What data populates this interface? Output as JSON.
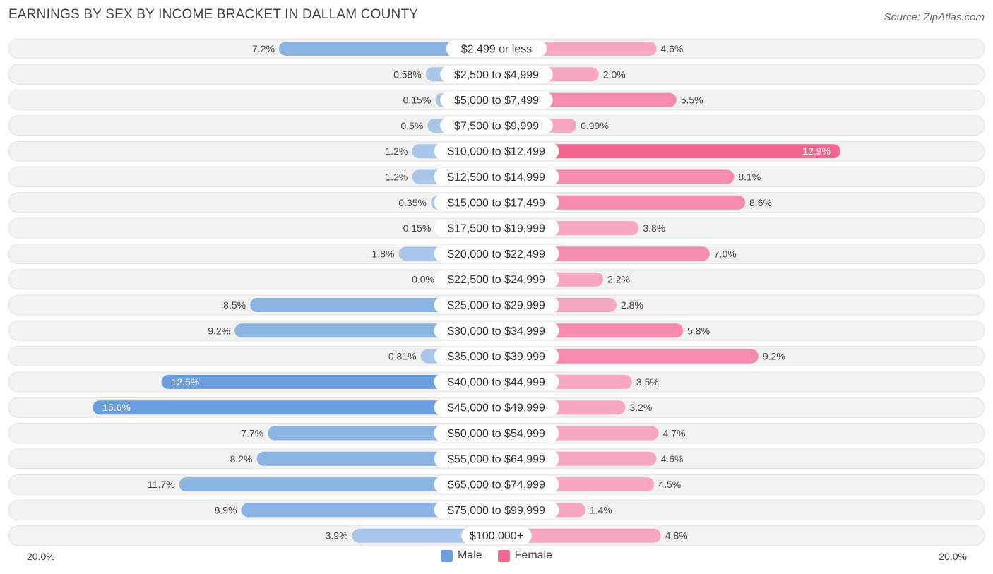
{
  "title": "EARNINGS BY SEX BY INCOME BRACKET IN DALLAM COUNTY",
  "source": "Source: ZipAtlas.com",
  "axis": {
    "left_label": "20.0%",
    "right_label": "20.0%"
  },
  "legend": {
    "male": "Male",
    "female": "Female"
  },
  "colors": {
    "male_light": "#a8c7ea",
    "male_mid": "#8cb4e2",
    "male_dark": "#6a9edd",
    "female_light": "#f7a7c2",
    "female_mid": "#f48aae",
    "female_dark": "#f06892",
    "row_bg": "#f2f2f2"
  },
  "chart_data": {
    "type": "bar",
    "orientation": "horizontal-diverging",
    "title": "EARNINGS BY SEX BY INCOME BRACKET IN DALLAM COUNTY",
    "xlim": [
      -20,
      20
    ],
    "categories": [
      "$2,499 or less",
      "$2,500 to $4,999",
      "$5,000 to $7,499",
      "$7,500 to $9,999",
      "$10,000 to $12,499",
      "$12,500 to $14,999",
      "$15,000 to $17,499",
      "$17,500 to $19,999",
      "$20,000 to $22,499",
      "$22,500 to $24,999",
      "$25,000 to $29,999",
      "$30,000 to $34,999",
      "$35,000 to $39,999",
      "$40,000 to $44,999",
      "$45,000 to $49,999",
      "$50,000 to $54,999",
      "$55,000 to $64,999",
      "$65,000 to $74,999",
      "$75,000 to $99,999",
      "$100,000+"
    ],
    "series": [
      {
        "name": "Male",
        "values": [
          7.2,
          0.58,
          0.15,
          0.5,
          1.2,
          1.2,
          0.35,
          0.15,
          1.8,
          0.0,
          8.5,
          9.2,
          0.81,
          12.5,
          15.6,
          7.7,
          8.2,
          11.7,
          8.9,
          3.9
        ],
        "labels": [
          "7.2%",
          "0.58%",
          "0.15%",
          "0.5%",
          "1.2%",
          "1.2%",
          "0.35%",
          "0.15%",
          "1.8%",
          "0.0%",
          "8.5%",
          "9.2%",
          "0.81%",
          "12.5%",
          "15.6%",
          "7.7%",
          "8.2%",
          "11.7%",
          "8.9%",
          "3.9%"
        ]
      },
      {
        "name": "Female",
        "values": [
          4.6,
          2.0,
          5.5,
          0.99,
          12.9,
          8.1,
          8.6,
          3.8,
          7.0,
          2.2,
          2.8,
          5.8,
          9.2,
          3.5,
          3.2,
          4.7,
          4.6,
          4.5,
          1.4,
          4.8
        ],
        "labels": [
          "4.6%",
          "2.0%",
          "5.5%",
          "0.99%",
          "12.9%",
          "8.1%",
          "8.6%",
          "3.8%",
          "7.0%",
          "2.2%",
          "2.8%",
          "5.8%",
          "9.2%",
          "3.5%",
          "3.2%",
          "4.7%",
          "4.6%",
          "4.5%",
          "1.4%",
          "4.8%"
        ]
      }
    ]
  }
}
